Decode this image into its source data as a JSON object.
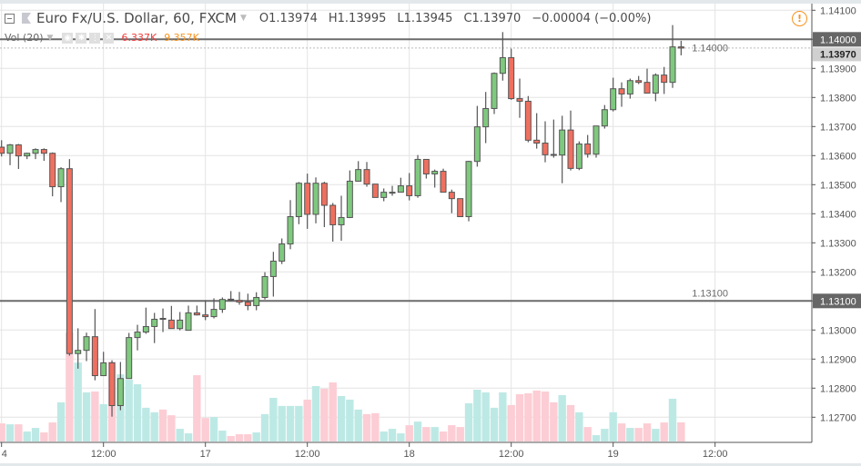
{
  "header": {
    "symbol_title": "Euro Fx/U.S. Dollar, 60, FXCM",
    "open": "O1.13974",
    "high": "H1.13995",
    "low": "L1.13945",
    "close": "C1.13970",
    "change": "−0.00004 (−0.00%)",
    "volume_indicator": "Vol (20)",
    "volume_value": "6.337K",
    "volume_ma_value": "9.357K",
    "icons": [
      "collapse-icon",
      "symbol-flag-icon",
      "dropdown-caret-icon",
      "eye-icon",
      "gear-icon",
      "more-icon",
      "close-icon",
      "warning-icon"
    ]
  },
  "colors": {
    "up": "#7fc97f",
    "down": "#ef7060",
    "volume_up": "#bde9e5",
    "volume_down": "#fccdd4",
    "hline": "#6b6b6b",
    "volume_value": "#ef3b3b",
    "volume_ma": "#f7931e"
  },
  "chart_data": {
    "type": "candlestick",
    "symbol": "Euro Fx/U.S. Dollar",
    "interval": "60",
    "ylim": [
      1.1262,
      1.1413
    ],
    "grid": true,
    "y_ticks": [
      "1.14100",
      "1.14000",
      "1.13900",
      "1.13800",
      "1.13700",
      "1.13600",
      "1.13500",
      "1.13400",
      "1.13300",
      "1.13200",
      "1.13100",
      "1.13000",
      "1.12900",
      "1.12800",
      "1.12700"
    ],
    "x_ticks": [
      {
        "index": 0,
        "label": "4"
      },
      {
        "index": 12,
        "label": "12:00"
      },
      {
        "index": 24,
        "label": "17"
      },
      {
        "index": 36,
        "label": "12:00"
      },
      {
        "index": 48,
        "label": "18"
      },
      {
        "index": 60,
        "label": "12:00"
      },
      {
        "index": 72,
        "label": "19"
      },
      {
        "index": 84,
        "label": "12:00"
      }
    ],
    "horizontal_lines": [
      {
        "price": 1.14,
        "label": "1.14000"
      },
      {
        "price": 1.131,
        "label": "1.13100"
      }
    ],
    "last_price": {
      "price": 1.1397,
      "label": "1.13970"
    },
    "candle_fields": [
      "open",
      "high",
      "low",
      "close",
      "volume_k"
    ],
    "candles": [
      [
        1.13629,
        1.13653,
        1.13597,
        1.13608,
        6.0
      ],
      [
        1.13608,
        1.1364,
        1.13567,
        1.13637,
        5.7
      ],
      [
        1.13637,
        1.1364,
        1.13554,
        1.13599,
        5.7
      ],
      [
        1.13599,
        1.1361,
        1.13588,
        1.13608,
        3.3
      ],
      [
        1.13608,
        1.13625,
        1.13588,
        1.13621,
        4.5
      ],
      [
        1.13621,
        1.13625,
        1.13582,
        1.13608,
        3.0
      ],
      [
        1.13608,
        1.13611,
        1.1346,
        1.13493,
        6.3
      ],
      [
        1.13493,
        1.1356,
        1.1344,
        1.13555,
        13.0
      ],
      [
        1.13555,
        1.13588,
        1.12912,
        1.12919,
        36.2
      ],
      [
        1.12919,
        1.13006,
        1.12867,
        1.1293,
        26.2
      ],
      [
        1.1293,
        1.12991,
        1.12893,
        1.12977,
        16.3
      ],
      [
        1.12977,
        1.13072,
        1.12827,
        1.12843,
        16.6
      ],
      [
        1.12843,
        1.12925,
        1.12843,
        1.12887,
        12.4
      ],
      [
        1.12887,
        1.12896,
        1.12702,
        1.1274,
        26.5
      ],
      [
        1.1274,
        1.1289,
        1.12724,
        1.12833,
        22.3
      ],
      [
        1.12833,
        1.1299,
        1.12833,
        1.12974,
        20.5
      ],
      [
        1.12974,
        1.13018,
        1.1293,
        1.12993,
        19.0
      ],
      [
        1.12993,
        1.13077,
        1.12987,
        1.13012,
        11.2
      ],
      [
        1.13012,
        1.13059,
        1.12955,
        1.13037,
        9.7
      ],
      [
        1.1304,
        1.13074,
        1.12993,
        1.13037,
        10.6
      ],
      [
        1.13034,
        1.13083,
        1.13005,
        1.13005,
        8.7
      ],
      [
        1.13005,
        1.13062,
        1.12999,
        1.13034,
        4.2
      ],
      [
        1.12999,
        1.13084,
        1.12999,
        1.13059,
        2.7
      ],
      [
        1.13059,
        1.13084,
        1.1305,
        1.13052,
        22.0
      ],
      [
        1.13052,
        1.13102,
        1.13034,
        1.13046,
        7.8
      ],
      [
        1.13046,
        1.13109,
        1.1304,
        1.13071,
        8.1
      ],
      [
        1.13071,
        1.13112,
        1.13059,
        1.13105,
        3.6
      ],
      [
        1.13106,
        1.13134,
        1.131,
        1.13104,
        1.8
      ],
      [
        1.13102,
        1.13131,
        1.13087,
        1.13096,
        2.4
      ],
      [
        1.13096,
        1.13125,
        1.13068,
        1.13084,
        2.4
      ],
      [
        1.13084,
        1.1313,
        1.13068,
        1.13112,
        3.0
      ],
      [
        1.13112,
        1.13199,
        1.13105,
        1.13184,
        9.1
      ],
      [
        1.13184,
        1.13269,
        1.13115,
        1.13237,
        14.5
      ],
      [
        1.13237,
        1.13315,
        1.13227,
        1.13296,
        11.8
      ],
      [
        1.13296,
        1.13447,
        1.13278,
        1.1339,
        11.8
      ],
      [
        1.1339,
        1.13509,
        1.13364,
        1.13505,
        11.8
      ],
      [
        1.13505,
        1.13538,
        1.13348,
        1.13398,
        13.9
      ],
      [
        1.13398,
        1.13525,
        1.13367,
        1.13505,
        18.4
      ],
      [
        1.13505,
        1.1351,
        1.13354,
        1.13429,
        17.5
      ],
      [
        1.13429,
        1.13437,
        1.13304,
        1.13362,
        19.6
      ],
      [
        1.13362,
        1.13462,
        1.13307,
        1.13387,
        15.1
      ],
      [
        1.13387,
        1.13549,
        1.13385,
        1.13512,
        13.9
      ],
      [
        1.13512,
        1.13581,
        1.1351,
        1.13552,
        10.6
      ],
      [
        1.13552,
        1.13578,
        1.13493,
        1.13502,
        9.1
      ],
      [
        1.13502,
        1.13502,
        1.13456,
        1.13456,
        9.4
      ],
      [
        1.13456,
        1.13487,
        1.13443,
        1.13474,
        3.3
      ],
      [
        1.13473,
        1.13496,
        1.13462,
        1.13474,
        4.2
      ],
      [
        1.13474,
        1.13524,
        1.13474,
        1.13496,
        2.7
      ],
      [
        1.13496,
        1.1354,
        1.13446,
        1.13462,
        5.4
      ],
      [
        1.13462,
        1.13602,
        1.13455,
        1.13587,
        6.6
      ],
      [
        1.13587,
        1.13587,
        1.13521,
        1.13537,
        4.8
      ],
      [
        1.13537,
        1.13552,
        1.1349,
        1.13546,
        4.8
      ],
      [
        1.13546,
        1.13555,
        1.13474,
        1.13474,
        3.3
      ],
      [
        1.13474,
        1.13483,
        1.13402,
        1.13452,
        5.4
      ],
      [
        1.13452,
        1.13452,
        1.1339,
        1.1339,
        4.8
      ],
      [
        1.1339,
        1.13582,
        1.13374,
        1.1358,
        12.7
      ],
      [
        1.1358,
        1.13771,
        1.13562,
        1.13699,
        17.2
      ],
      [
        1.13699,
        1.13819,
        1.13643,
        1.13762,
        16.3
      ],
      [
        1.13762,
        1.13886,
        1.13743,
        1.13883,
        11.2
      ],
      [
        1.13883,
        1.14025,
        1.13858,
        1.13937,
        16.3
      ],
      [
        1.13937,
        1.13968,
        1.13792,
        1.13796,
        12.1
      ],
      [
        1.13796,
        1.13865,
        1.1373,
        1.13787,
        15.7
      ],
      [
        1.13787,
        1.13805,
        1.13646,
        1.13653,
        16.0
      ],
      [
        1.13653,
        1.13746,
        1.13624,
        1.13643,
        16.9
      ],
      [
        1.13643,
        1.13718,
        1.13577,
        1.13603,
        16.6
      ],
      [
        1.13604,
        1.13724,
        1.13593,
        1.13602,
        13.0
      ],
      [
        1.13602,
        1.13737,
        1.13505,
        1.13688,
        15.4
      ],
      [
        1.13688,
        1.13755,
        1.13549,
        1.13556,
        12.1
      ],
      [
        1.13556,
        1.13649,
        1.1355,
        1.1364,
        9.7
      ],
      [
        1.1364,
        1.13671,
        1.13593,
        1.13605,
        4.8
      ],
      [
        1.13605,
        1.13702,
        1.13593,
        1.13702,
        2.1
      ],
      [
        1.13702,
        1.13774,
        1.13693,
        1.13758,
        4.2
      ],
      [
        1.13758,
        1.13868,
        1.13752,
        1.1383,
        9.7
      ],
      [
        1.1383,
        1.13852,
        1.13768,
        1.13812,
        6.0
      ],
      [
        1.13812,
        1.13865,
        1.13796,
        1.13858,
        4.5
      ],
      [
        1.13858,
        1.13874,
        1.13846,
        1.13852,
        4.5
      ],
      [
        1.13852,
        1.13899,
        1.13815,
        1.13815,
        6.0
      ],
      [
        1.13815,
        1.13883,
        1.13787,
        1.13877,
        4.2
      ],
      [
        1.13877,
        1.13905,
        1.13812,
        1.13852,
        6.3
      ],
      [
        1.13852,
        1.14049,
        1.13833,
        1.13974,
        14.2
      ],
      [
        1.13974,
        1.13995,
        1.13945,
        1.1397,
        6.337
      ]
    ]
  }
}
